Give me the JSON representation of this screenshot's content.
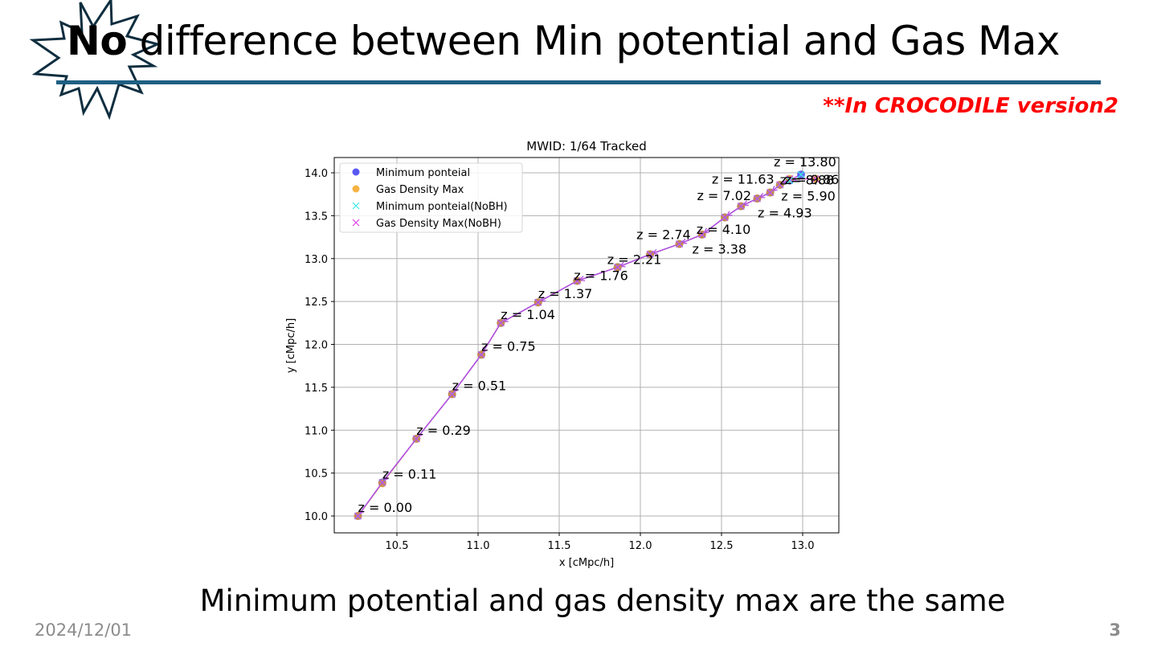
{
  "slide": {
    "title_bold": "No",
    "title_rest": " difference between Min potential and Gas Max",
    "subtitle": "**In CROCODILE version2",
    "caption": "Minimum potential and gas density max are the same",
    "footer_date": "2024/12/01",
    "page_number": "3",
    "colors": {
      "title_rule": "#1f5f82",
      "subtitle": "#ff0000",
      "footer": "#8c8c8c"
    }
  },
  "chart_data": {
    "type": "scatter",
    "title": "MWID: 1/64 Tracked",
    "xlabel": "x [cMpc/h]",
    "ylabel": "y [cMpc/h]",
    "xlim": [
      10.15,
      13.22
    ],
    "ylim": [
      9.8,
      14.1
    ],
    "xticks": [
      "10.5",
      "11.0",
      "11.5",
      "12.0",
      "12.5",
      "13.0"
    ],
    "yticks": [
      "10.0",
      "10.5",
      "11.0",
      "11.5",
      "12.0",
      "12.5",
      "13.0",
      "13.5",
      "14.0"
    ],
    "grid": true,
    "legend_position": "upper left",
    "legend": [
      {
        "label": "Minimum ponteial",
        "marker": "circle",
        "color": "#3b3bf0"
      },
      {
        "label": "Gas Density Max",
        "marker": "circle",
        "color": "#f5a623"
      },
      {
        "label": "Minimum ponteial(NoBH)",
        "marker": "x",
        "color": "#3fe8e8"
      },
      {
        "label": "Gas Density Max(NoBH)",
        "marker": "x",
        "color": "#e040e8"
      }
    ],
    "series": [
      {
        "name": "Minimum ponteial",
        "z": [
          0.0,
          0.11,
          0.29,
          0.51,
          0.75,
          1.04,
          1.37,
          1.76,
          2.21,
          2.74,
          3.38,
          4.1,
          4.93,
          5.9,
          7.02,
          8.88,
          9.86,
          11.63,
          13.8
        ],
        "x": [
          10.26,
          10.41,
          10.62,
          10.84,
          11.02,
          11.14,
          11.37,
          11.61,
          11.86,
          12.06,
          12.24,
          12.38,
          12.52,
          12.62,
          12.72,
          12.8,
          12.86,
          12.92,
          12.99
        ],
        "y": [
          10.0,
          10.39,
          10.9,
          11.42,
          11.88,
          12.25,
          12.49,
          12.74,
          12.9,
          13.05,
          13.17,
          13.28,
          13.48,
          13.61,
          13.7,
          13.77,
          13.86,
          13.91,
          13.98
        ]
      },
      {
        "name": "Gas Density Max",
        "x": [
          10.26,
          10.41,
          10.62,
          10.84,
          11.02,
          11.14,
          11.37,
          11.61,
          11.86,
          12.06,
          12.24,
          12.38,
          12.52,
          12.62,
          12.72,
          12.8,
          12.86,
          12.92,
          13.08
        ],
        "y": [
          10.0,
          10.38,
          10.9,
          11.42,
          11.88,
          12.25,
          12.49,
          12.74,
          12.9,
          13.05,
          13.17,
          13.28,
          13.48,
          13.61,
          13.7,
          13.77,
          13.86,
          13.93,
          13.93
        ]
      },
      {
        "name": "Minimum ponteial(NoBH)",
        "x": [
          10.26,
          10.41,
          10.62,
          10.84,
          11.02,
          11.14,
          11.37,
          11.61,
          11.86,
          12.06,
          12.24,
          12.38,
          12.52,
          12.62,
          12.72,
          12.8,
          12.86,
          12.92,
          12.99
        ],
        "y": [
          10.0,
          10.39,
          10.9,
          11.42,
          11.88,
          12.25,
          12.49,
          12.74,
          12.9,
          13.05,
          13.17,
          13.28,
          13.48,
          13.61,
          13.7,
          13.77,
          13.86,
          13.91,
          13.98
        ]
      },
      {
        "name": "Gas Density Max(NoBH)",
        "x": [
          10.26,
          10.41,
          10.62,
          10.84,
          11.02,
          11.14,
          11.37,
          11.61,
          11.86,
          12.06,
          12.24,
          12.38,
          12.52,
          12.62,
          12.72,
          12.8,
          12.86,
          12.92,
          13.08
        ],
        "y": [
          10.0,
          10.39,
          10.9,
          11.42,
          11.88,
          12.25,
          12.49,
          12.74,
          12.9,
          13.05,
          13.17,
          13.28,
          13.48,
          13.61,
          13.7,
          13.77,
          13.86,
          13.93,
          13.93
        ]
      }
    ],
    "annotations": [
      {
        "text": "z = 0.00",
        "x": 10.26,
        "y": 10.0
      },
      {
        "text": "z = 0.11",
        "x": 10.41,
        "y": 10.39
      },
      {
        "text": "z = 0.29",
        "x": 10.62,
        "y": 10.9
      },
      {
        "text": "z = 0.51",
        "x": 10.84,
        "y": 11.42
      },
      {
        "text": "z = 0.75",
        "x": 11.02,
        "y": 11.88
      },
      {
        "text": "z = 1.04",
        "x": 11.14,
        "y": 12.25
      },
      {
        "text": "z = 1.37",
        "x": 11.37,
        "y": 12.49
      },
      {
        "text": "z = 1.76",
        "x": 11.61,
        "y": 12.74
      },
      {
        "text": "z = 2.21",
        "x": 11.86,
        "y": 12.9
      },
      {
        "text": "z = 2.74",
        "x": 12.06,
        "y": 13.05
      },
      {
        "text": "z = 3.38",
        "x": 12.24,
        "y": 13.17
      },
      {
        "text": "z = 4.10",
        "x": 12.38,
        "y": 13.28
      },
      {
        "text": "z = 4.93",
        "x": 12.52,
        "y": 13.48
      },
      {
        "text": "z = 5.90",
        "x": 12.62,
        "y": 13.61
      },
      {
        "text": "z = 7.02",
        "x": 12.72,
        "y": 13.7
      },
      {
        "text": "z = 8.88",
        "x": 12.8,
        "y": 13.77
      },
      {
        "text": "z = 9.86",
        "x": 12.86,
        "y": 13.86
      },
      {
        "text": "z = 11.63",
        "x": 12.92,
        "y": 13.91
      },
      {
        "text": "z = 13.80",
        "x": 12.99,
        "y": 13.98
      }
    ]
  }
}
